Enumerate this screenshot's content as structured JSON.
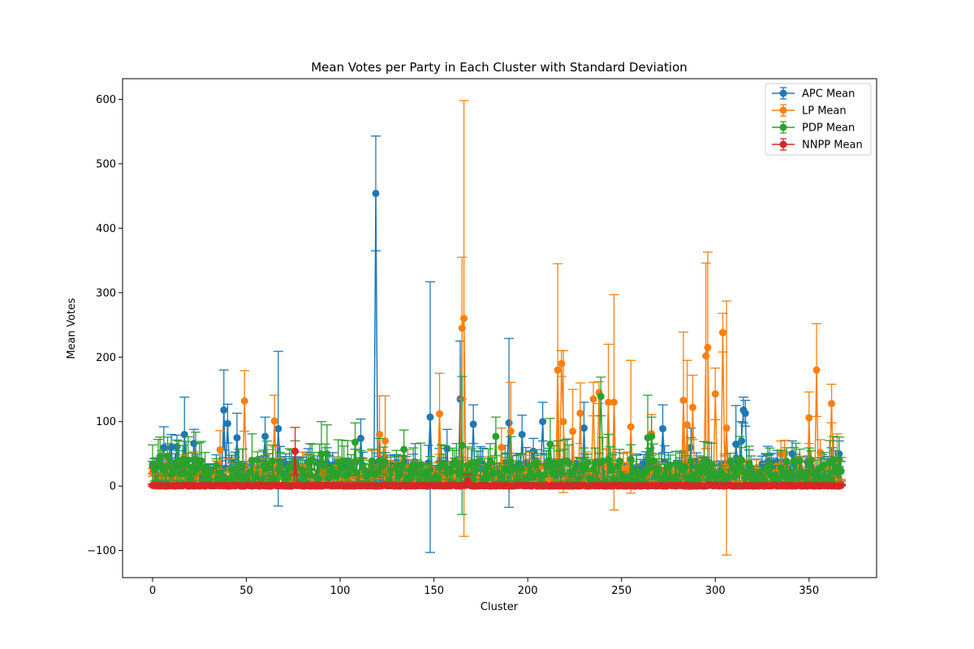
{
  "chart_data": {
    "type": "scatter",
    "title": "Mean Votes per Party in Each Cluster with Standard Deviation",
    "xlabel": "Cluster",
    "ylabel": "Mean Votes",
    "xlim": [
      -16,
      386
    ],
    "ylim": [
      -142,
      632
    ],
    "xticks": [
      0,
      50,
      100,
      150,
      200,
      250,
      300,
      350
    ],
    "yticks": [
      -100,
      0,
      100,
      200,
      300,
      400,
      500,
      600
    ],
    "ytick_labels": [
      "−100",
      "0",
      "100",
      "200",
      "300",
      "400",
      "500",
      "600"
    ],
    "grid": false,
    "legend_position": "top-right",
    "n_clusters": 368,
    "series": [
      {
        "name": "APC Mean",
        "color": "#1f77b4",
        "baseline": 22,
        "noise_amp": 16,
        "sd_ratio": 0.55,
        "points": [
          {
            "x": 6,
            "y": 60,
            "sd": 32
          },
          {
            "x": 10,
            "y": 60,
            "sd": 20
          },
          {
            "x": 13,
            "y": 61,
            "sd": 18
          },
          {
            "x": 17,
            "y": 80,
            "sd": 58
          },
          {
            "x": 22,
            "y": 66,
            "sd": 22
          },
          {
            "x": 38,
            "y": 118,
            "sd": 62
          },
          {
            "x": 40,
            "y": 97,
            "sd": 30
          },
          {
            "x": 45,
            "y": 75,
            "sd": 38
          },
          {
            "x": 60,
            "y": 77,
            "sd": 30
          },
          {
            "x": 67,
            "y": 89,
            "sd": 120
          },
          {
            "x": 82,
            "y": 32,
            "sd": 20
          },
          {
            "x": 111,
            "y": 74,
            "sd": 30
          },
          {
            "x": 119,
            "y": 454,
            "sd": 89
          },
          {
            "x": 148,
            "y": 107,
            "sd": 210
          },
          {
            "x": 157,
            "y": 58,
            "sd": 30
          },
          {
            "x": 164,
            "y": 135,
            "sd": 90
          },
          {
            "x": 171,
            "y": 96,
            "sd": 30
          },
          {
            "x": 190,
            "y": 98,
            "sd": 131
          },
          {
            "x": 197,
            "y": 80,
            "sd": 30
          },
          {
            "x": 203,
            "y": 54,
            "sd": 20
          },
          {
            "x": 208,
            "y": 100,
            "sd": 30
          },
          {
            "x": 230,
            "y": 90,
            "sd": 40
          },
          {
            "x": 272,
            "y": 89,
            "sd": 37
          },
          {
            "x": 287,
            "y": 60,
            "sd": 30
          },
          {
            "x": 311,
            "y": 65,
            "sd": 60
          },
          {
            "x": 315,
            "y": 118,
            "sd": 20
          },
          {
            "x": 316,
            "y": 113,
            "sd": 20
          },
          {
            "x": 314,
            "y": 70,
            "sd": 30
          },
          {
            "x": 318,
            "y": 36,
            "sd": 20
          },
          {
            "x": 330,
            "y": 36,
            "sd": 15
          },
          {
            "x": 341,
            "y": 50,
            "sd": 20
          },
          {
            "x": 357,
            "y": 29,
            "sd": 20
          },
          {
            "x": 366,
            "y": 50,
            "sd": 20
          },
          {
            "x": 367,
            "y": 23,
            "sd": 15
          }
        ]
      },
      {
        "name": "LP Mean",
        "color": "#ff7f0e",
        "baseline": 12,
        "noise_amp": 18,
        "sd_ratio": 0.7,
        "points": [
          {
            "x": 36,
            "y": 56,
            "sd": 30
          },
          {
            "x": 49,
            "y": 132,
            "sd": 47
          },
          {
            "x": 65,
            "y": 101,
            "sd": 40
          },
          {
            "x": 121,
            "y": 80,
            "sd": 60
          },
          {
            "x": 124,
            "y": 70,
            "sd": 70
          },
          {
            "x": 153,
            "y": 112,
            "sd": 63
          },
          {
            "x": 165,
            "y": 245,
            "sd": 110
          },
          {
            "x": 166,
            "y": 260,
            "sd": 338
          },
          {
            "x": 186,
            "y": 60,
            "sd": 30
          },
          {
            "x": 191,
            "y": 85,
            "sd": 76
          },
          {
            "x": 216,
            "y": 180,
            "sd": 165
          },
          {
            "x": 218,
            "y": 190,
            "sd": 20
          },
          {
            "x": 219,
            "y": 100,
            "sd": 110
          },
          {
            "x": 224,
            "y": 85,
            "sd": 65
          },
          {
            "x": 228,
            "y": 113,
            "sd": 47
          },
          {
            "x": 235,
            "y": 135,
            "sd": 26
          },
          {
            "x": 238,
            "y": 145,
            "sd": 17
          },
          {
            "x": 243,
            "y": 130,
            "sd": 90
          },
          {
            "x": 246,
            "y": 130,
            "sd": 167
          },
          {
            "x": 255,
            "y": 92,
            "sd": 103
          },
          {
            "x": 266,
            "y": 81,
            "sd": 30
          },
          {
            "x": 283,
            "y": 133,
            "sd": 106
          },
          {
            "x": 285,
            "y": 95,
            "sd": 100
          },
          {
            "x": 288,
            "y": 122,
            "sd": 50
          },
          {
            "x": 295,
            "y": 202,
            "sd": 144
          },
          {
            "x": 296,
            "y": 215,
            "sd": 148
          },
          {
            "x": 300,
            "y": 143,
            "sd": 40
          },
          {
            "x": 304,
            "y": 238,
            "sd": 30
          },
          {
            "x": 306,
            "y": 90,
            "sd": 197
          },
          {
            "x": 335,
            "y": 50,
            "sd": 20
          },
          {
            "x": 337,
            "y": 51,
            "sd": 20
          },
          {
            "x": 350,
            "y": 106,
            "sd": 40
          },
          {
            "x": 354,
            "y": 180,
            "sd": 72
          },
          {
            "x": 356,
            "y": 52,
            "sd": 20
          },
          {
            "x": 362,
            "y": 128,
            "sd": 30
          },
          {
            "x": 365,
            "y": 40,
            "sd": 41
          }
        ]
      },
      {
        "name": "PDP Mean",
        "color": "#2ca02c",
        "baseline": 22,
        "noise_amp": 20,
        "sd_ratio": 0.75,
        "points": [
          {
            "x": 4,
            "y": 46,
            "sd": 30
          },
          {
            "x": 8,
            "y": 46,
            "sd": 30
          },
          {
            "x": 90,
            "y": 50,
            "sd": 50
          },
          {
            "x": 93,
            "y": 50,
            "sd": 45
          },
          {
            "x": 108,
            "y": 68,
            "sd": 30
          },
          {
            "x": 134,
            "y": 57,
            "sd": 30
          },
          {
            "x": 165,
            "y": 63,
            "sd": 107
          },
          {
            "x": 183,
            "y": 77,
            "sd": 30
          },
          {
            "x": 212,
            "y": 65,
            "sd": 40
          },
          {
            "x": 239,
            "y": 139,
            "sd": 30
          },
          {
            "x": 264,
            "y": 75,
            "sd": 66
          },
          {
            "x": 266,
            "y": 77,
            "sd": 30
          },
          {
            "x": 296,
            "y": 38,
            "sd": 30
          },
          {
            "x": 342,
            "y": 40,
            "sd": 20
          }
        ]
      },
      {
        "name": "NNPP Mean",
        "color": "#d62728",
        "baseline": 0.5,
        "noise_amp": 0.8,
        "sd_ratio": 1.5,
        "points": [
          {
            "x": 76,
            "y": 54,
            "sd": 37
          },
          {
            "x": 168,
            "y": 8,
            "sd": 10
          }
        ]
      }
    ]
  }
}
